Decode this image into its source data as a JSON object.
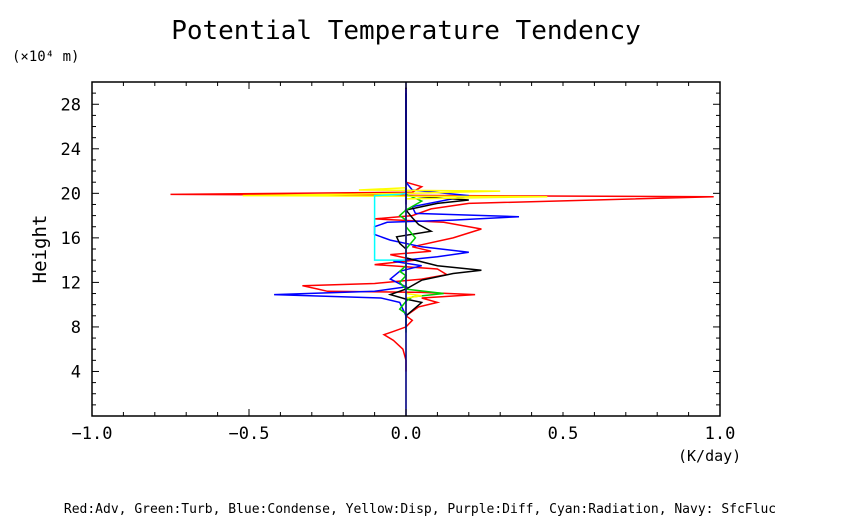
{
  "chart_data": {
    "type": "line",
    "title": "Potential Temperature Tendency",
    "ylabel": "Height",
    "y_unit": "(×10⁴ m)",
    "x_unit": "(K/day)",
    "xlim": [
      -1.0,
      1.0
    ],
    "ylim": [
      0,
      30
    ],
    "x_ticks": [
      -1.0,
      -0.5,
      0.0,
      0.5,
      1.0
    ],
    "x_tick_labels": [
      "−1.0",
      "−0.5",
      "0.0",
      "0.5",
      "1.0"
    ],
    "y_ticks": [
      4,
      8,
      12,
      16,
      20,
      24,
      28
    ],
    "y_tick_labels": [
      "4",
      "8",
      "12",
      "16",
      "20",
      "24",
      "28"
    ],
    "grid": false,
    "legend_text": "Red:Adv, Green:Turb, Blue:Condense, Yellow:Disp, Purple:Diff, Cyan:Radiation, Navy: SfcFluc",
    "series": [
      {
        "color": "#ff0000",
        "points": [
          [
            0.0,
            4
          ],
          [
            0.0,
            5
          ],
          [
            -0.01,
            6
          ],
          [
            -0.04,
            6.8
          ],
          [
            -0.07,
            7.3
          ],
          [
            -0.04,
            7.6
          ],
          [
            0.0,
            8
          ],
          [
            0.02,
            8.6
          ],
          [
            0.0,
            9
          ],
          [
            0.04,
            9.8
          ],
          [
            0.1,
            10.2
          ],
          [
            0.05,
            10.6
          ],
          [
            0.22,
            10.9
          ],
          [
            0.05,
            11.1
          ],
          [
            -0.25,
            11.2
          ],
          [
            -0.28,
            11.4
          ],
          [
            -0.33,
            11.7
          ],
          [
            -0.1,
            11.9
          ],
          [
            0.05,
            12.3
          ],
          [
            0.13,
            12.7
          ],
          [
            0.1,
            13.2
          ],
          [
            -0.1,
            13.6
          ],
          [
            0.03,
            14.0
          ],
          [
            -0.05,
            14.5
          ],
          [
            0.08,
            14.8
          ],
          [
            0.02,
            15.2
          ],
          [
            0.15,
            16.0
          ],
          [
            0.24,
            16.8
          ],
          [
            0.12,
            17.4
          ],
          [
            -0.1,
            17.7
          ],
          [
            0.02,
            18.0
          ],
          [
            0.08,
            18.6
          ],
          [
            0.2,
            19.1
          ],
          [
            0.98,
            19.7
          ],
          [
            -0.75,
            19.9
          ],
          [
            0.02,
            20.1
          ],
          [
            0.05,
            20.6
          ],
          [
            0.0,
            21.0
          ],
          [
            0.0,
            22
          ],
          [
            0.0,
            24
          ],
          [
            0.0,
            26
          ],
          [
            0.0,
            28
          ],
          [
            0.0,
            29.5
          ]
        ]
      },
      {
        "color": "#0000ff",
        "points": [
          [
            0.0,
            8
          ],
          [
            0.0,
            9
          ],
          [
            -0.02,
            10.2
          ],
          [
            -0.08,
            10.6
          ],
          [
            -0.42,
            10.9
          ],
          [
            -0.1,
            11.2
          ],
          [
            0.0,
            11.6
          ],
          [
            -0.05,
            12.3
          ],
          [
            -0.02,
            13.0
          ],
          [
            0.05,
            13.5
          ],
          [
            -0.04,
            13.9
          ],
          [
            0.1,
            14.3
          ],
          [
            0.2,
            14.7
          ],
          [
            0.05,
            15.2
          ],
          [
            -0.05,
            15.8
          ],
          [
            -0.1,
            16.3
          ],
          [
            -0.1,
            17.0
          ],
          [
            -0.06,
            17.4
          ],
          [
            0.15,
            17.6
          ],
          [
            0.36,
            17.9
          ],
          [
            0.03,
            18.2
          ],
          [
            0.02,
            18.8
          ],
          [
            0.2,
            19.8
          ],
          [
            0.02,
            20.3
          ],
          [
            0.0,
            21
          ],
          [
            0.0,
            24
          ],
          [
            0.0,
            29
          ]
        ]
      },
      {
        "color": "#000000",
        "points": [
          [
            0.0,
            9
          ],
          [
            0.05,
            10.2
          ],
          [
            0.0,
            10.5
          ],
          [
            -0.05,
            10.9
          ],
          [
            0.0,
            11.4
          ],
          [
            0.05,
            12.2
          ],
          [
            0.15,
            12.8
          ],
          [
            0.24,
            13.1
          ],
          [
            0.1,
            13.5
          ],
          [
            0.0,
            14.2
          ],
          [
            0.0,
            15.0
          ],
          [
            -0.02,
            15.5
          ],
          [
            -0.03,
            16.1
          ],
          [
            0.08,
            16.6
          ],
          [
            0.04,
            17.2
          ],
          [
            0.02,
            17.8
          ],
          [
            0.0,
            18.5
          ],
          [
            0.1,
            19.1
          ],
          [
            0.2,
            19.4
          ],
          [
            0.0,
            19.8
          ],
          [
            0.0,
            20.5
          ],
          [
            0.0,
            22
          ],
          [
            0.0,
            25
          ],
          [
            0.0,
            29.5
          ]
        ]
      },
      {
        "color": "#00cc00",
        "points": [
          [
            0.0,
            7.5
          ],
          [
            0.0,
            9.2
          ],
          [
            -0.02,
            9.6
          ],
          [
            0.0,
            10.3
          ],
          [
            0.02,
            10.7
          ],
          [
            0.12,
            11.0
          ],
          [
            0.0,
            11.4
          ],
          [
            -0.02,
            12.0
          ],
          [
            0.0,
            12.6
          ],
          [
            -0.02,
            13.0
          ],
          [
            0.0,
            13.5
          ],
          [
            0.0,
            14.0
          ],
          [
            0.0,
            15.0
          ],
          [
            0.03,
            16.0
          ],
          [
            0.0,
            17.0
          ],
          [
            0.0,
            17.6
          ],
          [
            -0.02,
            18.0
          ],
          [
            0.0,
            18.5
          ],
          [
            0.05,
            19.3
          ],
          [
            0.0,
            19.9
          ],
          [
            0.0,
            20.5
          ]
        ]
      },
      {
        "color": "#ffff00",
        "points": [
          [
            0.0,
            10.6
          ],
          [
            0.05,
            10.8
          ],
          [
            0.0,
            11.0
          ],
          [
            0.0,
            14
          ],
          [
            0.0,
            19.5
          ],
          [
            0.45,
            19.7
          ],
          [
            -0.52,
            19.8
          ],
          [
            0.02,
            20.0
          ],
          [
            0.3,
            20.2
          ],
          [
            -0.15,
            20.3
          ],
          [
            0.0,
            20.5
          ],
          [
            0.0,
            21
          ]
        ]
      },
      {
        "color": "#800080",
        "points": [
          [
            0.0,
            19.0
          ],
          [
            0.0,
            20.5
          ]
        ]
      },
      {
        "color": "#00ffff",
        "points": [
          [
            0.0,
            14.0
          ],
          [
            -0.1,
            14.0
          ],
          [
            -0.1,
            19.8
          ],
          [
            -0.02,
            19.9
          ],
          [
            0.0,
            20.0
          ]
        ]
      },
      {
        "color": "#000080",
        "points": [
          [
            0.0,
            0
          ],
          [
            0.0,
            30
          ]
        ]
      }
    ]
  }
}
